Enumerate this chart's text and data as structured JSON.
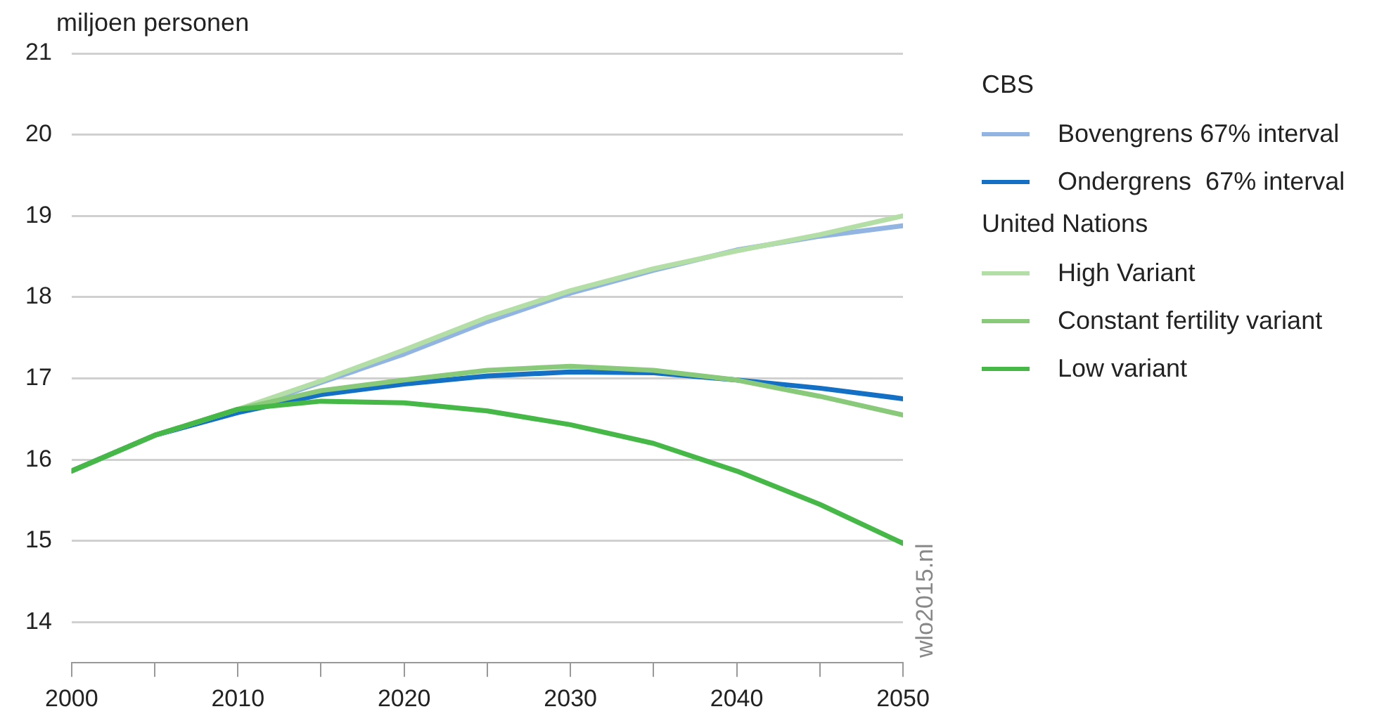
{
  "chart_data": {
    "type": "line",
    "ylabel": "miljoen personen",
    "legend_title": "CBS",
    "x": [
      2000,
      2005,
      2010,
      2015,
      2020,
      2025,
      2030,
      2035,
      2040,
      2045,
      2050
    ],
    "xlim": [
      2000,
      2050
    ],
    "xticks": [
      2000,
      {
        "value": 2005,
        "label": null
      },
      2010,
      {
        "value": 2015,
        "label": null
      },
      2020,
      {
        "value": 2025,
        "label": null
      },
      2030,
      {
        "value": 2035,
        "label": null
      },
      2040,
      {
        "value": 2045,
        "label": null
      },
      2050
    ],
    "ylim": [
      13.5,
      21
    ],
    "yticks": [
      14,
      15,
      16,
      17,
      18,
      19,
      20,
      21
    ],
    "grid": "y",
    "legend": "right",
    "marker": "none",
    "line_style": "solid",
    "series": [
      {
        "name": "Bovengrens 67% interval",
        "color": "#92b4e3",
        "values": [
          15.86,
          16.3,
          16.6,
          16.95,
          17.3,
          17.7,
          18.05,
          18.33,
          18.58,
          18.75,
          18.88
        ]
      },
      {
        "name": "Ondergrens  67% interval",
        "color": "#1470c4",
        "values": [
          15.86,
          16.3,
          16.58,
          16.8,
          16.93,
          17.03,
          17.08,
          17.07,
          16.98,
          16.88,
          16.75
        ]
      },
      {
        "name": "High Variant",
        "color": "#b3dea5",
        "values": [
          15.86,
          16.3,
          16.62,
          16.97,
          17.35,
          17.75,
          18.08,
          18.35,
          18.57,
          18.77,
          19.0
        ]
      },
      {
        "name": "Constant fertility variant",
        "color": "#88c97a",
        "values": [
          15.86,
          16.3,
          16.62,
          16.85,
          16.98,
          17.1,
          17.15,
          17.1,
          16.98,
          16.78,
          16.55
        ]
      },
      {
        "name": "Low variant",
        "color": "#45b847",
        "values": [
          15.86,
          16.3,
          16.62,
          16.72,
          16.7,
          16.6,
          16.43,
          16.2,
          15.86,
          15.45,
          14.97
        ]
      }
    ],
    "annotations": [
      "United Nations",
      "wlo2015.nl"
    ]
  }
}
